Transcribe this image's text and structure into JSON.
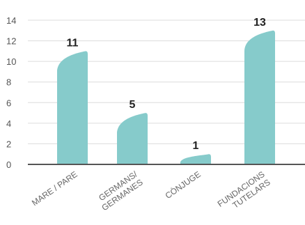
{
  "chart_data": {
    "type": "bar",
    "categories": [
      [
        "MARE / PARE"
      ],
      [
        "GERMANS/",
        "GERMANES"
      ],
      [
        "CÒNJUGE"
      ],
      [
        "FUNDACIONS",
        "TUTELARS"
      ]
    ],
    "values": [
      11,
      5,
      1,
      13
    ],
    "ylim": [
      0,
      14
    ],
    "yticks": [
      0,
      2,
      4,
      6,
      8,
      10,
      12,
      14
    ],
    "grid": true,
    "colors": {
      "bar": "#86CBCB",
      "axis": "#555555",
      "grid": "#dcdcdc"
    }
  }
}
